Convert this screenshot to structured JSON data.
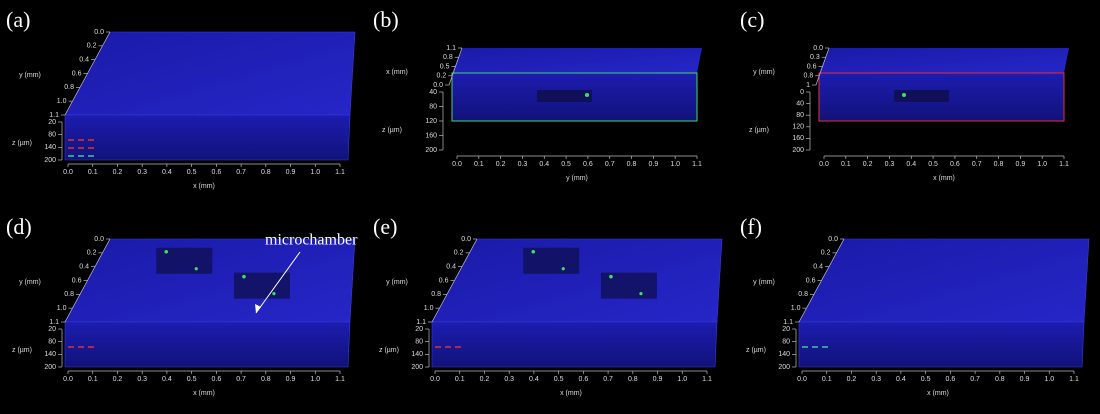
{
  "annotation": "microchamber",
  "panels": [
    {
      "label": "(a)",
      "y_axis": {
        "title": "y (mm)",
        "ticks": [
          "0.0",
          "0.2",
          "0.4",
          "0.6",
          "0.8",
          "1.0",
          "1.1"
        ]
      },
      "z_axis": {
        "title": "z (µm)",
        "ticks": [
          "20",
          "80",
          "140",
          "200"
        ]
      },
      "x_axis": {
        "title": "x (mm)",
        "ticks": [
          "0.0",
          "0.1",
          "0.2",
          "0.3",
          "0.4",
          "0.5",
          "0.6",
          "0.7",
          "0.8",
          "0.9",
          "1.0",
          "1.1"
        ]
      }
    },
    {
      "label": "(b)",
      "y_axis": {
        "title": "x (mm)",
        "ticks": [
          "1.1",
          "0.8",
          "0.5",
          "0.2",
          "0.0"
        ]
      },
      "z_axis": {
        "title": "z (µm)",
        "ticks": [
          "40",
          "80",
          "120",
          "160",
          "200"
        ]
      },
      "x_axis": {
        "title": "y (mm)",
        "ticks": [
          "0.0",
          "0.1",
          "0.2",
          "0.3",
          "0.4",
          "0.5",
          "0.6",
          "0.7",
          "0.8",
          "0.9",
          "1.0",
          "1.1"
        ]
      }
    },
    {
      "label": "(c)",
      "y_axis": {
        "title": "y (mm)",
        "ticks": [
          "0.0",
          "0.3",
          "0.6",
          "0.8",
          "1"
        ]
      },
      "z_axis": {
        "title": "z (µm)",
        "ticks": [
          "0",
          "40",
          "80",
          "120",
          "160",
          "200"
        ]
      },
      "x_axis": {
        "title": "x (mm)",
        "ticks": [
          "0.0",
          "0.1",
          "0.2",
          "0.3",
          "0.4",
          "0.5",
          "0.6",
          "0.7",
          "0.8",
          "0.9",
          "1.0",
          "1.1"
        ]
      }
    },
    {
      "label": "(d)",
      "y_axis": {
        "title": "y (mm)",
        "ticks": [
          "0.0",
          "0.2",
          "0.4",
          "0.6",
          "0.8",
          "1.0",
          "1.1"
        ]
      },
      "z_axis": {
        "title": "z (µm)",
        "ticks": [
          "20",
          "80",
          "140",
          "200"
        ]
      },
      "x_axis": {
        "title": "x (mm)",
        "ticks": [
          "0.0",
          "0.1",
          "0.2",
          "0.3",
          "0.4",
          "0.5",
          "0.6",
          "0.7",
          "0.8",
          "0.9",
          "1.0",
          "1.1"
        ]
      }
    },
    {
      "label": "(e)",
      "y_axis": {
        "title": "y (mm)",
        "ticks": [
          "0.0",
          "0.2",
          "0.4",
          "0.6",
          "0.8",
          "1.0",
          "1.1"
        ]
      },
      "z_axis": {
        "title": "z (µm)",
        "ticks": [
          "20",
          "80",
          "140",
          "200"
        ]
      },
      "x_axis": {
        "title": "x (mm)",
        "ticks": [
          "0.0",
          "0.1",
          "0.2",
          "0.3",
          "0.4",
          "0.5",
          "0.6",
          "0.7",
          "0.8",
          "0.9",
          "1.0",
          "1.1"
        ]
      }
    },
    {
      "label": "(f)",
      "y_axis": {
        "title": "y (mm)",
        "ticks": [
          "0.0",
          "0.2",
          "0.4",
          "0.6",
          "0.8",
          "1.0",
          "1.1"
        ]
      },
      "z_axis": {
        "title": "z (µm)",
        "ticks": [
          "20",
          "80",
          "140",
          "200"
        ]
      },
      "x_axis": {
        "title": "x (mm)",
        "ticks": [
          "0.0",
          "0.1",
          "0.2",
          "0.3",
          "0.4",
          "0.5",
          "0.6",
          "0.7",
          "0.8",
          "0.9",
          "1.0",
          "1.1"
        ]
      }
    }
  ]
}
